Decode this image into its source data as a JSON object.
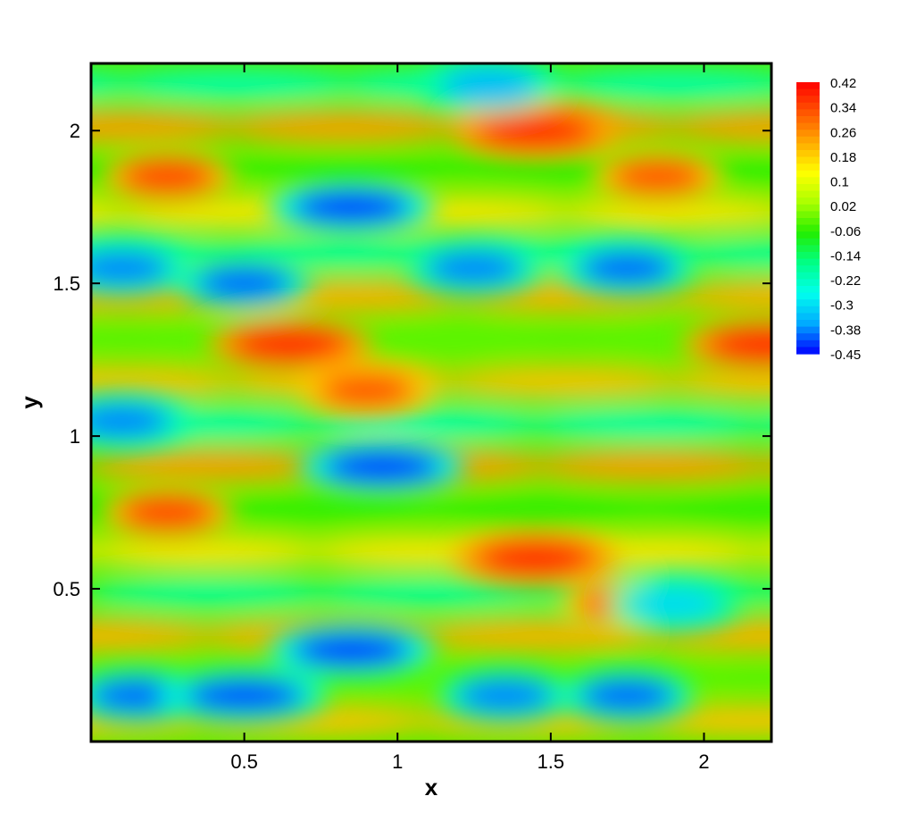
{
  "chart_data": {
    "type": "heatmap",
    "title": "",
    "xlabel": "x",
    "ylabel": "y",
    "xlim": [
      0,
      2.22
    ],
    "ylim": [
      0,
      2.22
    ],
    "x_ticks": [
      0.5,
      1,
      1.5,
      2
    ],
    "x_tick_labels": [
      "0.5",
      "1",
      "1.5",
      "2"
    ],
    "y_ticks": [
      0.5,
      1,
      1.5,
      2
    ],
    "y_tick_labels": [
      "0.5",
      "1",
      "1.5",
      "2"
    ],
    "grid": false,
    "colorbar": {
      "min": -0.45,
      "max": 0.42,
      "levels": [
        "0.42",
        "0.34",
        "0.26",
        "0.18",
        "0.1",
        "0.02",
        "-0.06",
        "-0.14",
        "-0.22",
        "-0.3",
        "-0.38",
        "-0.45"
      ],
      "colormap": [
        "#0000ff",
        "#00aaff",
        "#00ffee",
        "#00ff88",
        "#22ee00",
        "#aaff00",
        "#ffff00",
        "#ffaa00",
        "#ff5500",
        "#ff0000"
      ],
      "placement": "right"
    },
    "field_pattern": "periodic streaks elongated in x; period 1.11 in x and 1.11 in y",
    "features": [
      {
        "x": 0.25,
        "y": 1.85,
        "value": 0.36
      },
      {
        "x": 1.45,
        "y": 2.0,
        "value": 0.42
      },
      {
        "x": 1.85,
        "y": 1.85,
        "value": 0.34
      },
      {
        "x": 0.65,
        "y": 1.3,
        "value": 0.42
      },
      {
        "x": 0.9,
        "y": 1.15,
        "value": 0.34
      },
      {
        "x": 2.2,
        "y": 1.3,
        "value": 0.42
      },
      {
        "x": 0.25,
        "y": 0.75,
        "value": 0.36
      },
      {
        "x": 1.45,
        "y": 0.6,
        "value": 0.42
      },
      {
        "x": 1.75,
        "y": 0.45,
        "value": 0.34
      },
      {
        "x": 0.85,
        "y": 1.75,
        "value": -0.45
      },
      {
        "x": 0.1,
        "y": 1.55,
        "value": -0.38
      },
      {
        "x": 0.5,
        "y": 1.5,
        "value": -0.4
      },
      {
        "x": 1.25,
        "y": 1.55,
        "value": -0.38
      },
      {
        "x": 1.75,
        "y": 1.55,
        "value": -0.4
      },
      {
        "x": 1.3,
        "y": 2.15,
        "value": -0.34
      },
      {
        "x": 0.95,
        "y": 0.9,
        "value": -0.45
      },
      {
        "x": 0.1,
        "y": 1.05,
        "value": -0.38
      },
      {
        "x": 0.85,
        "y": 0.3,
        "value": -0.45
      },
      {
        "x": 0.15,
        "y": 0.15,
        "value": -0.4
      },
      {
        "x": 0.5,
        "y": 0.15,
        "value": -0.42
      },
      {
        "x": 1.35,
        "y": 0.15,
        "value": -0.38
      },
      {
        "x": 1.75,
        "y": 0.15,
        "value": -0.4
      },
      {
        "x": 1.9,
        "y": 0.45,
        "value": -0.3
      }
    ]
  }
}
